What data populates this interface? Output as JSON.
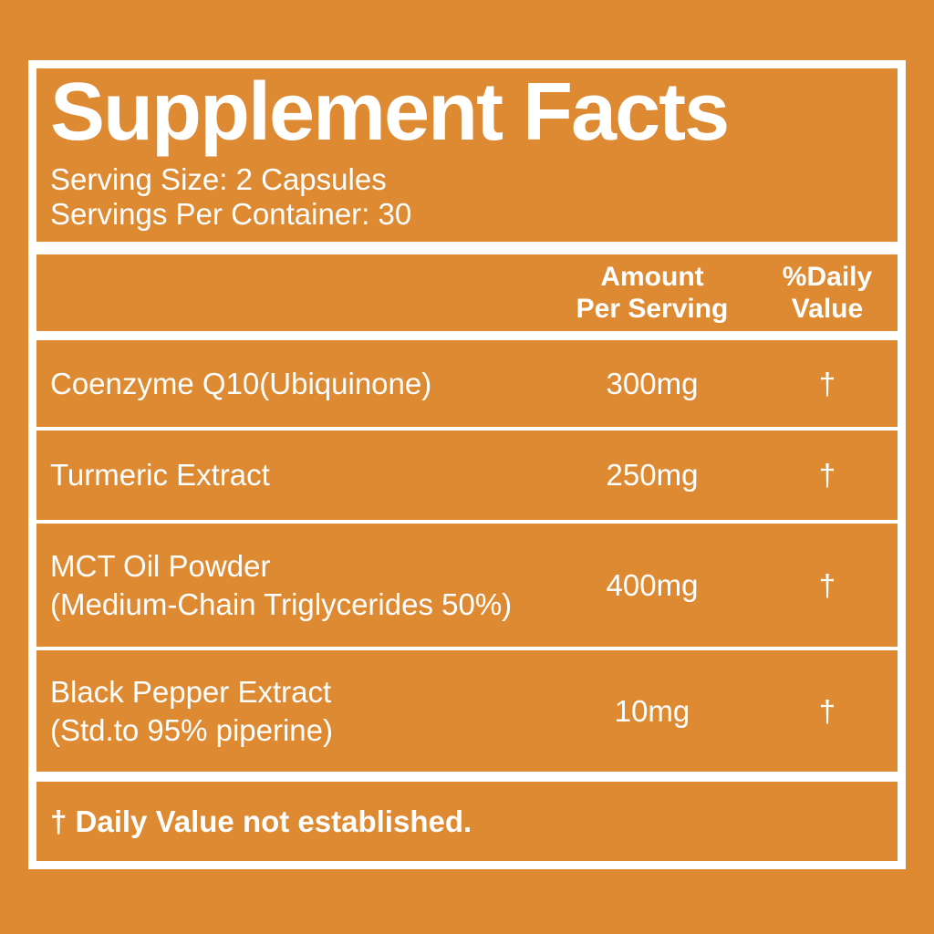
{
  "label": {
    "title": "Supplement Facts",
    "serving_size": "Serving Size: 2 Capsules",
    "servings_per_container": "Servings Per Container: 30",
    "columns": {
      "amount_line1": "Amount",
      "amount_line2": "Per Serving",
      "dv_line1": "%Daily",
      "dv_line2": "Value"
    },
    "rows": [
      {
        "name": "Coenzyme Q10(Ubiquinone)",
        "amount": "300mg",
        "dv": "†"
      },
      {
        "name": "Turmeric Extract",
        "amount": "250mg",
        "dv": "†"
      },
      {
        "name": "MCT Oil Powder",
        "name2": "(Medium-Chain Triglycerides 50%)",
        "amount": "400mg",
        "dv": "†"
      },
      {
        "name": "Black Pepper Extract",
        "name2": "(Std.to 95% piperine)",
        "amount": "10mg",
        "dv": "†"
      }
    ],
    "footnote": "† Daily Value not established.",
    "colors": {
      "background": "#DD8A33",
      "frame": "#FFFFFF",
      "text": "#FFFFFF"
    }
  }
}
